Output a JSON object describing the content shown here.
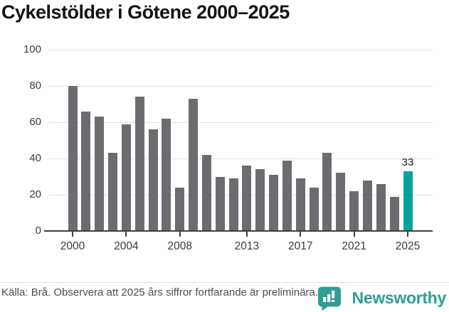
{
  "title": "Cykelstölder i Götene 2000–2025",
  "chart_data": {
    "type": "bar",
    "title": "Cykelstölder i Götene 2000–2025",
    "x": [
      2000,
      2001,
      2002,
      2003,
      2004,
      2005,
      2006,
      2007,
      2008,
      2009,
      2010,
      2011,
      2012,
      2013,
      2014,
      2015,
      2016,
      2017,
      2018,
      2019,
      2020,
      2021,
      2022,
      2023,
      2024,
      2025
    ],
    "values": [
      80,
      66,
      63,
      43,
      59,
      74,
      56,
      62,
      24,
      73,
      42,
      30,
      29,
      36,
      34,
      31,
      39,
      29,
      24,
      43,
      32,
      22,
      28,
      26,
      19,
      33
    ],
    "highlight_year": 2025,
    "highlight_value_label": "33",
    "yticks": [
      0,
      20,
      40,
      60,
      80,
      100
    ],
    "xticks": [
      2000,
      2004,
      2008,
      2013,
      2017,
      2021,
      2025
    ],
    "ylim": [
      0,
      100
    ],
    "xlabel": "",
    "ylabel": "",
    "grid": true,
    "legend": "none",
    "bar_color": "#6e6b70",
    "highlight_color": "#00a49a"
  },
  "footer": {
    "source_text": "Källa: Brå. Observera att 2025 års siffror fortfarande är preliminära.",
    "brand": "Newsworthy"
  },
  "colors": {
    "accent_teal": "#00a49a",
    "brand_teal": "#2f9e94",
    "bar_gray": "#6e6b70",
    "grid_gray": "#e4e4e4",
    "axis_dark": "#3f3f3f"
  }
}
